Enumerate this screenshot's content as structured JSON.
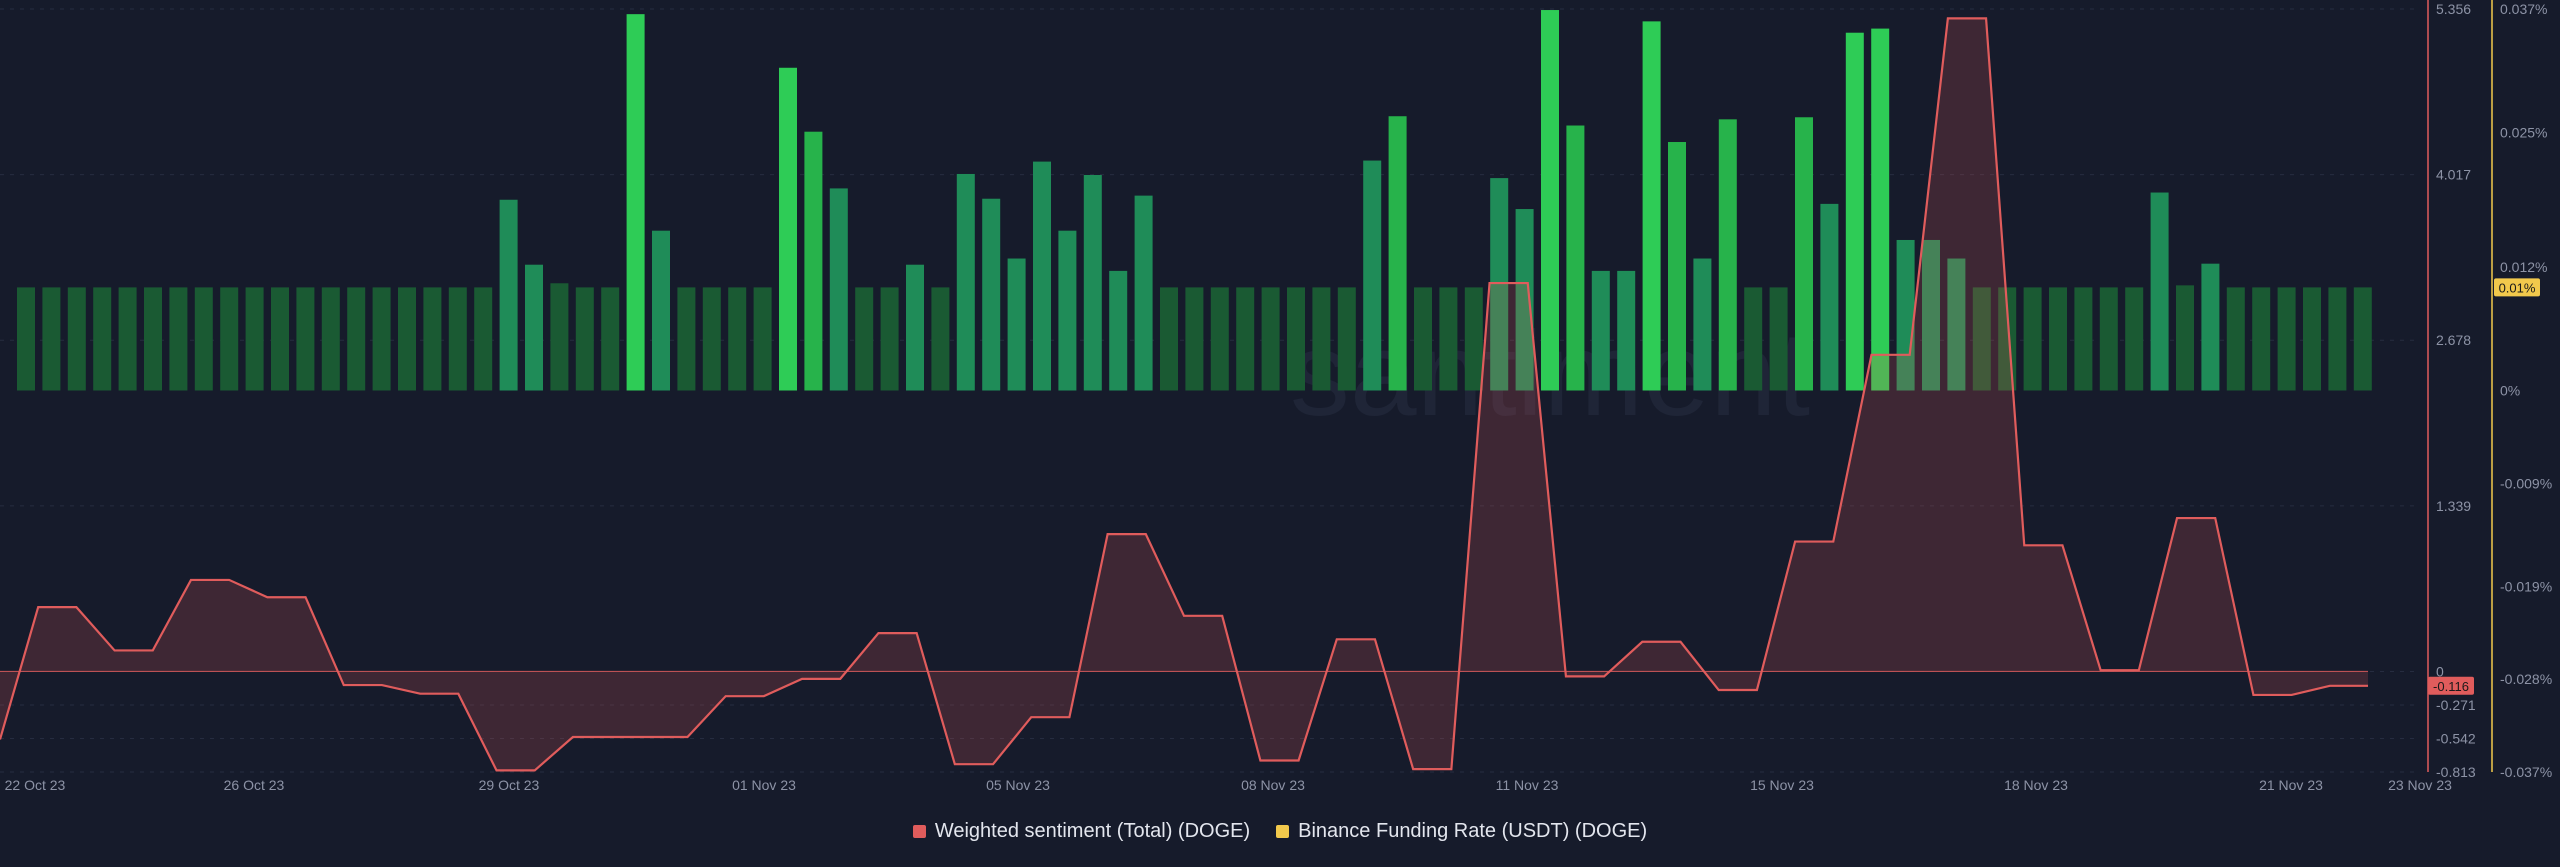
{
  "chart_data": {
    "type": "bar+area",
    "watermark": "santiment",
    "x_labels": [
      "22 Oct 23",
      "26 Oct 23",
      "29 Oct 23",
      "01 Nov 23",
      "05 Nov 23",
      "08 Nov 23",
      "11 Nov 23",
      "15 Nov 23",
      "18 Nov 23",
      "21 Nov 23",
      "23 Nov 23"
    ],
    "sentiment_axis": {
      "ticks": [
        "5.356",
        "4.017",
        "2.678",
        "1.339",
        "0",
        "-0.271",
        "-0.542",
        "-0.813"
      ],
      "ylim": [
        -0.813,
        5.356
      ],
      "color": "#e05c5c",
      "current_label": "-0.116"
    },
    "funding_axis": {
      "ticks": [
        "0.037%",
        "0.025%",
        "0.012%",
        "0%",
        "-0.009%",
        "-0.019%",
        "-0.028%",
        "-0.037%"
      ],
      "ylim": [
        -0.037,
        0.037
      ],
      "color": "#f2c94c",
      "current_label": "0.01%"
    },
    "series": [
      {
        "name": "Weighted sentiment (Total) (DOGE)",
        "color": "#e05c5c",
        "values": [
          -0.55,
          0.52,
          0.52,
          0.17,
          0.17,
          0.74,
          0.74,
          0.6,
          0.6,
          -0.11,
          -0.11,
          -0.18,
          -0.18,
          -0.8,
          -0.8,
          -0.53,
          -0.53,
          -0.53,
          -0.53,
          -0.2,
          -0.2,
          -0.06,
          -0.06,
          0.31,
          0.31,
          -0.75,
          -0.75,
          -0.37,
          -0.37,
          1.11,
          1.11,
          0.45,
          0.45,
          -0.72,
          -0.72,
          0.26,
          0.26,
          -0.79,
          -0.79,
          3.14,
          3.14,
          -0.04,
          -0.04,
          0.24,
          0.24,
          -0.15,
          -0.15,
          1.05,
          1.05,
          2.56,
          2.56,
          5.28,
          5.28,
          1.02,
          1.02,
          0.01,
          0.01,
          1.24,
          1.24,
          -0.19,
          -0.19,
          -0.116,
          -0.116
        ]
      },
      {
        "name": "Binance Funding Rate (USDT) (DOGE)",
        "color": "#2ecc56",
        "values": [
          0.01,
          0.01,
          0.01,
          0.01,
          0.01,
          0.01,
          0.01,
          0.01,
          0.01,
          0.01,
          0.01,
          0.01,
          0.01,
          0.01,
          0.01,
          0.01,
          0.01,
          0.01,
          0.01,
          0.0185,
          0.0122,
          0.0104,
          0.01,
          0.01,
          0.0365,
          0.0155,
          0.01,
          0.01,
          0.01,
          0.01,
          0.0313,
          0.0251,
          0.0196,
          0.01,
          0.01,
          0.0122,
          0.01,
          0.021,
          0.0186,
          0.0128,
          0.0222,
          0.0155,
          0.0209,
          0.0116,
          0.0189,
          0.01,
          0.01,
          0.01,
          0.01,
          0.01,
          0.01,
          0.01,
          0.01,
          0.0223,
          0.0266,
          0.01,
          0.01,
          0.01,
          0.0206,
          0.0176,
          0.0369,
          0.0257,
          0.0116,
          0.0116,
          0.0358,
          0.0241,
          0.0128,
          0.0263,
          0.01,
          0.01,
          0.0265,
          0.0181,
          0.0347,
          0.0351,
          0.0146,
          0.0146,
          0.0128,
          0.01,
          0.01,
          0.01,
          0.01,
          0.01,
          0.01,
          0.01,
          0.0192,
          0.0102,
          0.0123,
          0.01,
          0.01,
          0.01,
          0.01,
          0.01,
          0.01
        ]
      }
    ],
    "legend": {
      "position": "bottom-center",
      "items": [
        {
          "label": "Weighted sentiment (Total) (DOGE)",
          "color": "#e05c5c"
        },
        {
          "label": "Binance Funding Rate (USDT) (DOGE)",
          "color": "#f2c94c"
        }
      ]
    }
  }
}
